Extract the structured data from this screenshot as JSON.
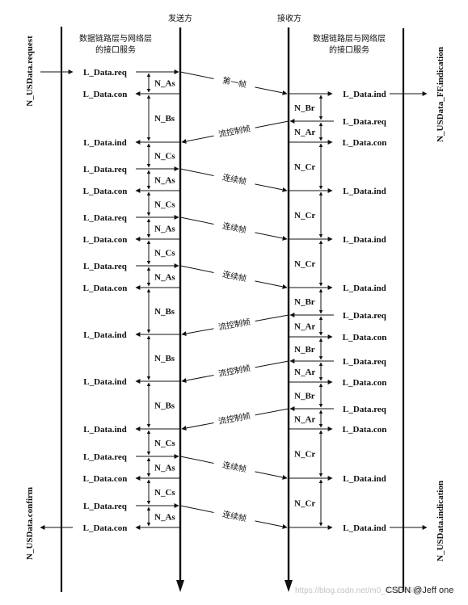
{
  "headers": {
    "sender": "发送方",
    "receiver": "接收方",
    "left_service": [
      "数据链路层与网络层",
      "的接口服务"
    ],
    "right_service": [
      "数据链路层与网络层",
      "的接口服务"
    ]
  },
  "side_labels": {
    "left_top": "N_USData.request",
    "left_bottom": "N_USData.confirm",
    "right_top": "N_USData_FF.indication",
    "right_bottom": "N_USData.indication"
  },
  "left_primitives": [
    "L_Data.req",
    "L_Data.con",
    "L_Data.ind",
    "L_Data.req",
    "L_Data.con",
    "L_Data.req",
    "L_Data.con",
    "L_Data.req",
    "L_Data.con",
    "L_Data.ind",
    "L_Data.ind",
    "L_Data.ind",
    "L_Data.req",
    "L_Data.con",
    "L_Data.req",
    "L_Data.con"
  ],
  "right_primitives": [
    "L_Data.ind",
    "L_Data.req",
    "L_Data.con",
    "L_Data.ind",
    "L_Data.ind",
    "L_Data.ind",
    "L_Data.req",
    "L_Data.con",
    "L_Data.req",
    "L_Data.con",
    "L_Data.req",
    "L_Data.con",
    "L_Data.ind",
    "L_Data.ind"
  ],
  "sender_timers": [
    "N_As",
    "N_Bs",
    "N_Cs",
    "N_As",
    "N_Cs",
    "N_As",
    "N_Cs",
    "N_As",
    "N_Bs",
    "N_Bs",
    "N_Bs",
    "N_Cs",
    "N_As",
    "N_Cs",
    "N_As"
  ],
  "receiver_timers": [
    "N_Br",
    "N_Ar",
    "N_Cr",
    "N_Cr",
    "N_Cr",
    "N_Br",
    "N_Ar",
    "N_Br",
    "N_Ar",
    "N_Br",
    "N_Ar",
    "N_Cr",
    "N_Cr"
  ],
  "frame_labels": [
    "第一帧",
    "流控制帧",
    "连续帧",
    "连续帧",
    "连续帧",
    "流控制帧",
    "流控制帧",
    "流控制帧",
    "连续帧",
    "连续帧"
  ],
  "watermark": "https://blog.csdn.net/m0_47334080",
  "credit": "CSDN @Jeff one"
}
